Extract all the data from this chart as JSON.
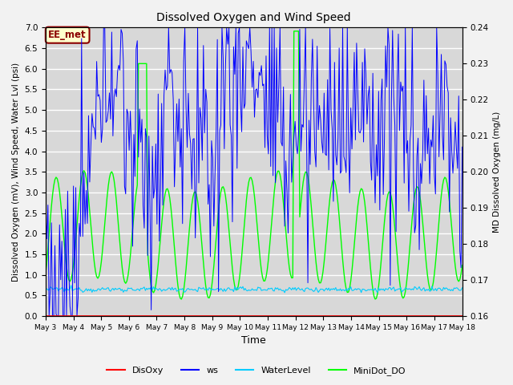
{
  "title": "Dissolved Oxygen and Wind Speed",
  "xlabel": "Time",
  "ylabel_left": "Dissolved Oxygen (mV), Wind Speed, Water Lvl (psi)",
  "ylabel_right": "MD Dissolved Oxygen (mg/L)",
  "ylim_left": [
    0.0,
    7.0
  ],
  "ylim_right": [
    0.16,
    0.24
  ],
  "annotation": "EE_met",
  "fig_facecolor": "#f0f0f0",
  "axes_facecolor": "#dcdcdc",
  "series_colors": {
    "DisOxy": "#ff0000",
    "ws": "#0000ff",
    "WaterLevel": "#00ccff",
    "MiniDot_DO": "#00ff00"
  },
  "x_start_days": 3,
  "x_end_days": 18,
  "x_ticks": [
    3,
    4,
    5,
    6,
    7,
    8,
    9,
    10,
    11,
    12,
    13,
    14,
    15,
    16,
    17,
    18
  ],
  "x_tick_labels": [
    "May 3",
    "May 4",
    "May 5",
    "May 6",
    "May 7",
    "May 8",
    "May 9",
    "May 10",
    "May 11",
    "May 12",
    "May 13",
    "May 14",
    "May 15",
    "May 16",
    "May 17",
    "May 18"
  ],
  "yticks_left": [
    0.0,
    0.5,
    1.0,
    1.5,
    2.0,
    2.5,
    3.0,
    3.5,
    4.0,
    4.5,
    5.0,
    5.5,
    6.0,
    6.5,
    7.0
  ],
  "yticks_right": [
    0.16,
    0.17,
    0.18,
    0.19,
    0.2,
    0.21,
    0.22,
    0.23,
    0.24
  ]
}
